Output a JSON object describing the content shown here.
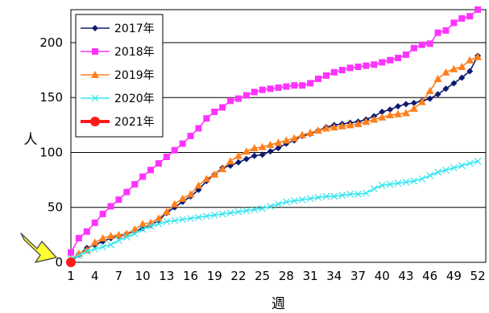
{
  "chart_data": {
    "type": "line",
    "xlabel": "週",
    "ylabel": "人",
    "xlim": [
      1,
      53
    ],
    "ylim": [
      0,
      230
    ],
    "x_ticks": [
      1,
      4,
      7,
      10,
      13,
      16,
      19,
      22,
      25,
      28,
      31,
      34,
      37,
      40,
      43,
      46,
      49,
      52
    ],
    "y_ticks": [
      0,
      50,
      100,
      150,
      200
    ],
    "grid": "horizontal",
    "legend_position": "top-left",
    "annotation": "yellow-arrow-pointing-to-origin",
    "colors": {
      "plot_border": "#000000",
      "gridline": "#000000",
      "arrow_fill": "#ffff33",
      "arrow_stroke": "#555555"
    },
    "series": [
      {
        "name": "2017年",
        "color": "#0f1a6e",
        "marker": "diamond",
        "x": [
          1,
          2,
          3,
          4,
          5,
          6,
          7,
          8,
          9,
          10,
          11,
          12,
          13,
          14,
          15,
          16,
          17,
          18,
          19,
          20,
          21,
          22,
          23,
          24,
          25,
          26,
          27,
          28,
          29,
          30,
          31,
          32,
          33,
          34,
          35,
          36,
          37,
          38,
          39,
          40,
          41,
          42,
          43,
          44,
          45,
          46,
          47,
          48,
          49,
          50,
          51,
          52
        ],
        "values": [
          1,
          7,
          13,
          16,
          19,
          22,
          24,
          26,
          28,
          31,
          34,
          38,
          45,
          50,
          55,
          60,
          66,
          74,
          80,
          86,
          88,
          91,
          94,
          97,
          98,
          101,
          104,
          108,
          111,
          115,
          117,
          120,
          123,
          125,
          126,
          127,
          128,
          130,
          133,
          137,
          139,
          142,
          144,
          145,
          147,
          149,
          153,
          158,
          163,
          168,
          174,
          188
        ]
      },
      {
        "name": "2018年",
        "color": "#ff33ff",
        "marker": "square",
        "x": [
          1,
          2,
          3,
          4,
          5,
          6,
          7,
          8,
          9,
          10,
          11,
          12,
          13,
          14,
          15,
          16,
          17,
          18,
          19,
          20,
          21,
          22,
          23,
          24,
          25,
          26,
          27,
          28,
          29,
          30,
          31,
          32,
          33,
          34,
          35,
          36,
          37,
          38,
          39,
          40,
          41,
          42,
          43,
          44,
          45,
          46,
          47,
          48,
          49,
          50,
          51,
          52
        ],
        "values": [
          9,
          22,
          28,
          36,
          44,
          51,
          57,
          64,
          71,
          78,
          84,
          90,
          96,
          102,
          108,
          115,
          122,
          131,
          137,
          141,
          147,
          149,
          152,
          155,
          157,
          158,
          159,
          160,
          161,
          161,
          163,
          167,
          170,
          173,
          175,
          177,
          178,
          179,
          180,
          182,
          184,
          186,
          189,
          195,
          198,
          199,
          209,
          211,
          218,
          222,
          224,
          230
        ]
      },
      {
        "name": "2019年",
        "color": "#ff7f1e",
        "marker": "triangle",
        "x": [
          1,
          2,
          3,
          4,
          5,
          6,
          7,
          8,
          9,
          10,
          11,
          12,
          13,
          14,
          15,
          16,
          17,
          18,
          19,
          20,
          21,
          22,
          23,
          24,
          25,
          26,
          27,
          28,
          29,
          30,
          31,
          32,
          33,
          34,
          35,
          36,
          37,
          38,
          39,
          40,
          41,
          42,
          43,
          44,
          45,
          46,
          47,
          48,
          49,
          50,
          51,
          52
        ],
        "values": [
          2,
          8,
          11,
          18,
          22,
          24,
          25,
          26,
          30,
          35,
          36,
          40,
          46,
          53,
          58,
          62,
          70,
          76,
          80,
          85,
          92,
          97,
          101,
          104,
          105,
          107,
          109,
          111,
          113,
          116,
          118,
          120,
          122,
          123,
          124,
          125,
          126,
          128,
          130,
          132,
          134,
          135,
          136,
          140,
          146,
          156,
          167,
          173,
          176,
          178,
          184,
          187
        ]
      },
      {
        "name": "2020年",
        "color": "#33e6f0",
        "marker": "x",
        "x": [
          1,
          2,
          3,
          4,
          5,
          6,
          7,
          8,
          9,
          10,
          11,
          12,
          13,
          14,
          15,
          16,
          17,
          18,
          19,
          20,
          21,
          22,
          23,
          24,
          25,
          26,
          27,
          28,
          29,
          30,
          31,
          32,
          33,
          34,
          35,
          36,
          37,
          38,
          39,
          40,
          41,
          42,
          43,
          44,
          45,
          46,
          47,
          48,
          49,
          50,
          51,
          52
        ],
        "values": [
          3,
          6,
          10,
          12,
          14,
          16,
          20,
          23,
          26,
          30,
          33,
          35,
          37,
          38,
          39,
          40,
          41,
          42,
          43,
          44,
          45,
          46,
          47,
          48,
          49,
          51,
          53,
          55,
          56,
          57,
          58,
          59,
          60,
          60,
          61,
          62,
          62,
          63,
          67,
          70,
          71,
          72,
          73,
          74,
          76,
          79,
          82,
          84,
          86,
          88,
          90,
          92
        ]
      },
      {
        "name": "2021年",
        "color": "#ff1a1a",
        "marker": "circle",
        "x": [
          1
        ],
        "values": [
          0
        ]
      }
    ]
  }
}
